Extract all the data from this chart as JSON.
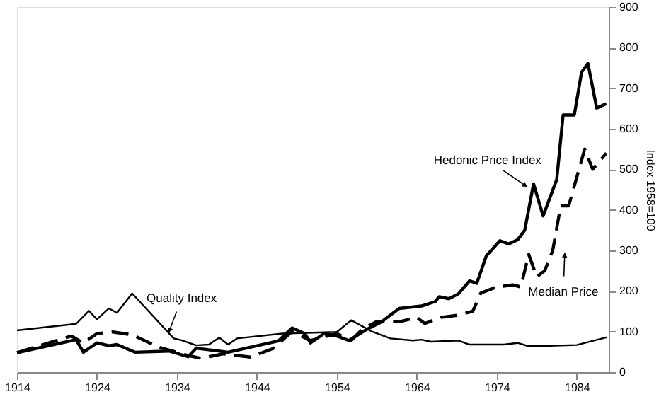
{
  "chart_data": {
    "type": "line",
    "ylabel": "Index 1958=100",
    "xlim": [
      1914,
      1988
    ],
    "xticks": [
      1914,
      1924,
      1934,
      1944,
      1954,
      1964,
      1974,
      1984
    ],
    "ylim": [
      0,
      900
    ],
    "yticks": [
      0,
      100,
      200,
      300,
      400,
      500,
      600,
      700,
      800,
      900
    ],
    "grid": false,
    "marker": "none",
    "series": [
      {
        "color": "#000000",
        "line_style": "solid",
        "x": [
          1914,
          1921.4,
          1923,
          1924,
          1925.5,
          1926.5,
          1928.4,
          1933.6,
          1934.7,
          1936.4,
          1938,
          1939.3,
          1940.4,
          1941.5,
          1947.2,
          1954,
          1955.8,
          1958.4,
          1960.7,
          1963.5,
          1964.6,
          1965.8,
          1969.2,
          1970.6,
          1974.9,
          1976.6,
          1977.8,
          1980.6,
          1984,
          1987.8
        ],
        "values": [
          103,
          119,
          151,
          130,
          157,
          146,
          194,
          83,
          78,
          66,
          68,
          85,
          68,
          83,
          95,
          99,
          128,
          100,
          83,
          78,
          80,
          75,
          78,
          68,
          68,
          72,
          65,
          65,
          67,
          86
        ]
      },
      {
        "color": "#000000",
        "line_style": "solid",
        "x": [
          1914,
          1921.4,
          1922.3,
          1924,
          1925.5,
          1926.5,
          1928.8,
          1933,
          1935.4,
          1936.4,
          1940.4,
          1946.7,
          1948.4,
          1950,
          1950.7,
          1952.4,
          1954,
          1955.5,
          1957.8,
          1959.5,
          1961.8,
          1964.6,
          1966.3,
          1966.8,
          1968,
          1969.2,
          1970.6,
          1971.5,
          1972.7,
          1974.4,
          1975.5,
          1976.6,
          1977.5,
          1978.6,
          1979.8,
          1981.5,
          1982.3,
          1983.7,
          1984.6,
          1985.4,
          1986.5,
          1987.7
        ],
        "values": [
          48,
          80,
          49,
          72,
          65,
          68,
          49,
          52,
          38,
          59,
          49,
          77,
          109,
          95,
          72,
          95,
          89,
          78,
          106,
          123,
          157,
          163,
          174,
          186,
          181,
          193,
          225,
          219,
          287,
          324,
          316,
          326,
          350,
          464,
          385,
          475,
          634,
          634,
          739,
          761,
          651,
          662
        ]
      },
      {
        "color": "#000000",
        "line_style": "dashed",
        "x": [
          1914,
          1920.8,
          1922.3,
          1924,
          1926,
          1928.4,
          1931.8,
          1935.4,
          1937,
          1939.8,
          1943.2,
          1946,
          1948.4,
          1950.7,
          1954,
          1955.8,
          1957.2,
          1959,
          1962,
          1964,
          1965,
          1967,
          1969,
          1971,
          1972,
          1974,
          1976,
          1977,
          1978,
          1979,
          1980,
          1981,
          1982,
          1983,
          1984,
          1985,
          1986,
          1987.7
        ],
        "values": [
          48,
          89,
          72,
          95,
          99,
          92,
          61,
          41,
          34,
          45,
          37,
          58,
          100,
          78,
          95,
          78,
          106,
          125,
          125,
          135,
          120,
          135,
          140,
          150,
          195,
          210,
          215,
          210,
          290,
          235,
          250,
          300,
          410,
          410,
          480,
          550,
          500,
          540
        ]
      }
    ],
    "annotations": [
      {
        "text": "Quality Index",
        "x": 1933,
        "y": 99
      },
      {
        "text": "Hedonic Price Index",
        "x": 1977.8,
        "y": 457
      },
      {
        "text": "Median Price",
        "x": 1982.5,
        "y": 293
      }
    ]
  }
}
